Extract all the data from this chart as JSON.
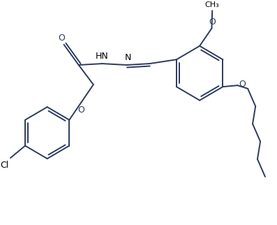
{
  "line_color": "#2d3a5e",
  "bg_color": "#ffffff",
  "bond_lw": 1.4,
  "font_size": 9,
  "fig_width": 3.97,
  "fig_height": 3.22,
  "dpi": 100,
  "xlim": [
    0,
    10
  ],
  "ylim": [
    0,
    8.1
  ]
}
